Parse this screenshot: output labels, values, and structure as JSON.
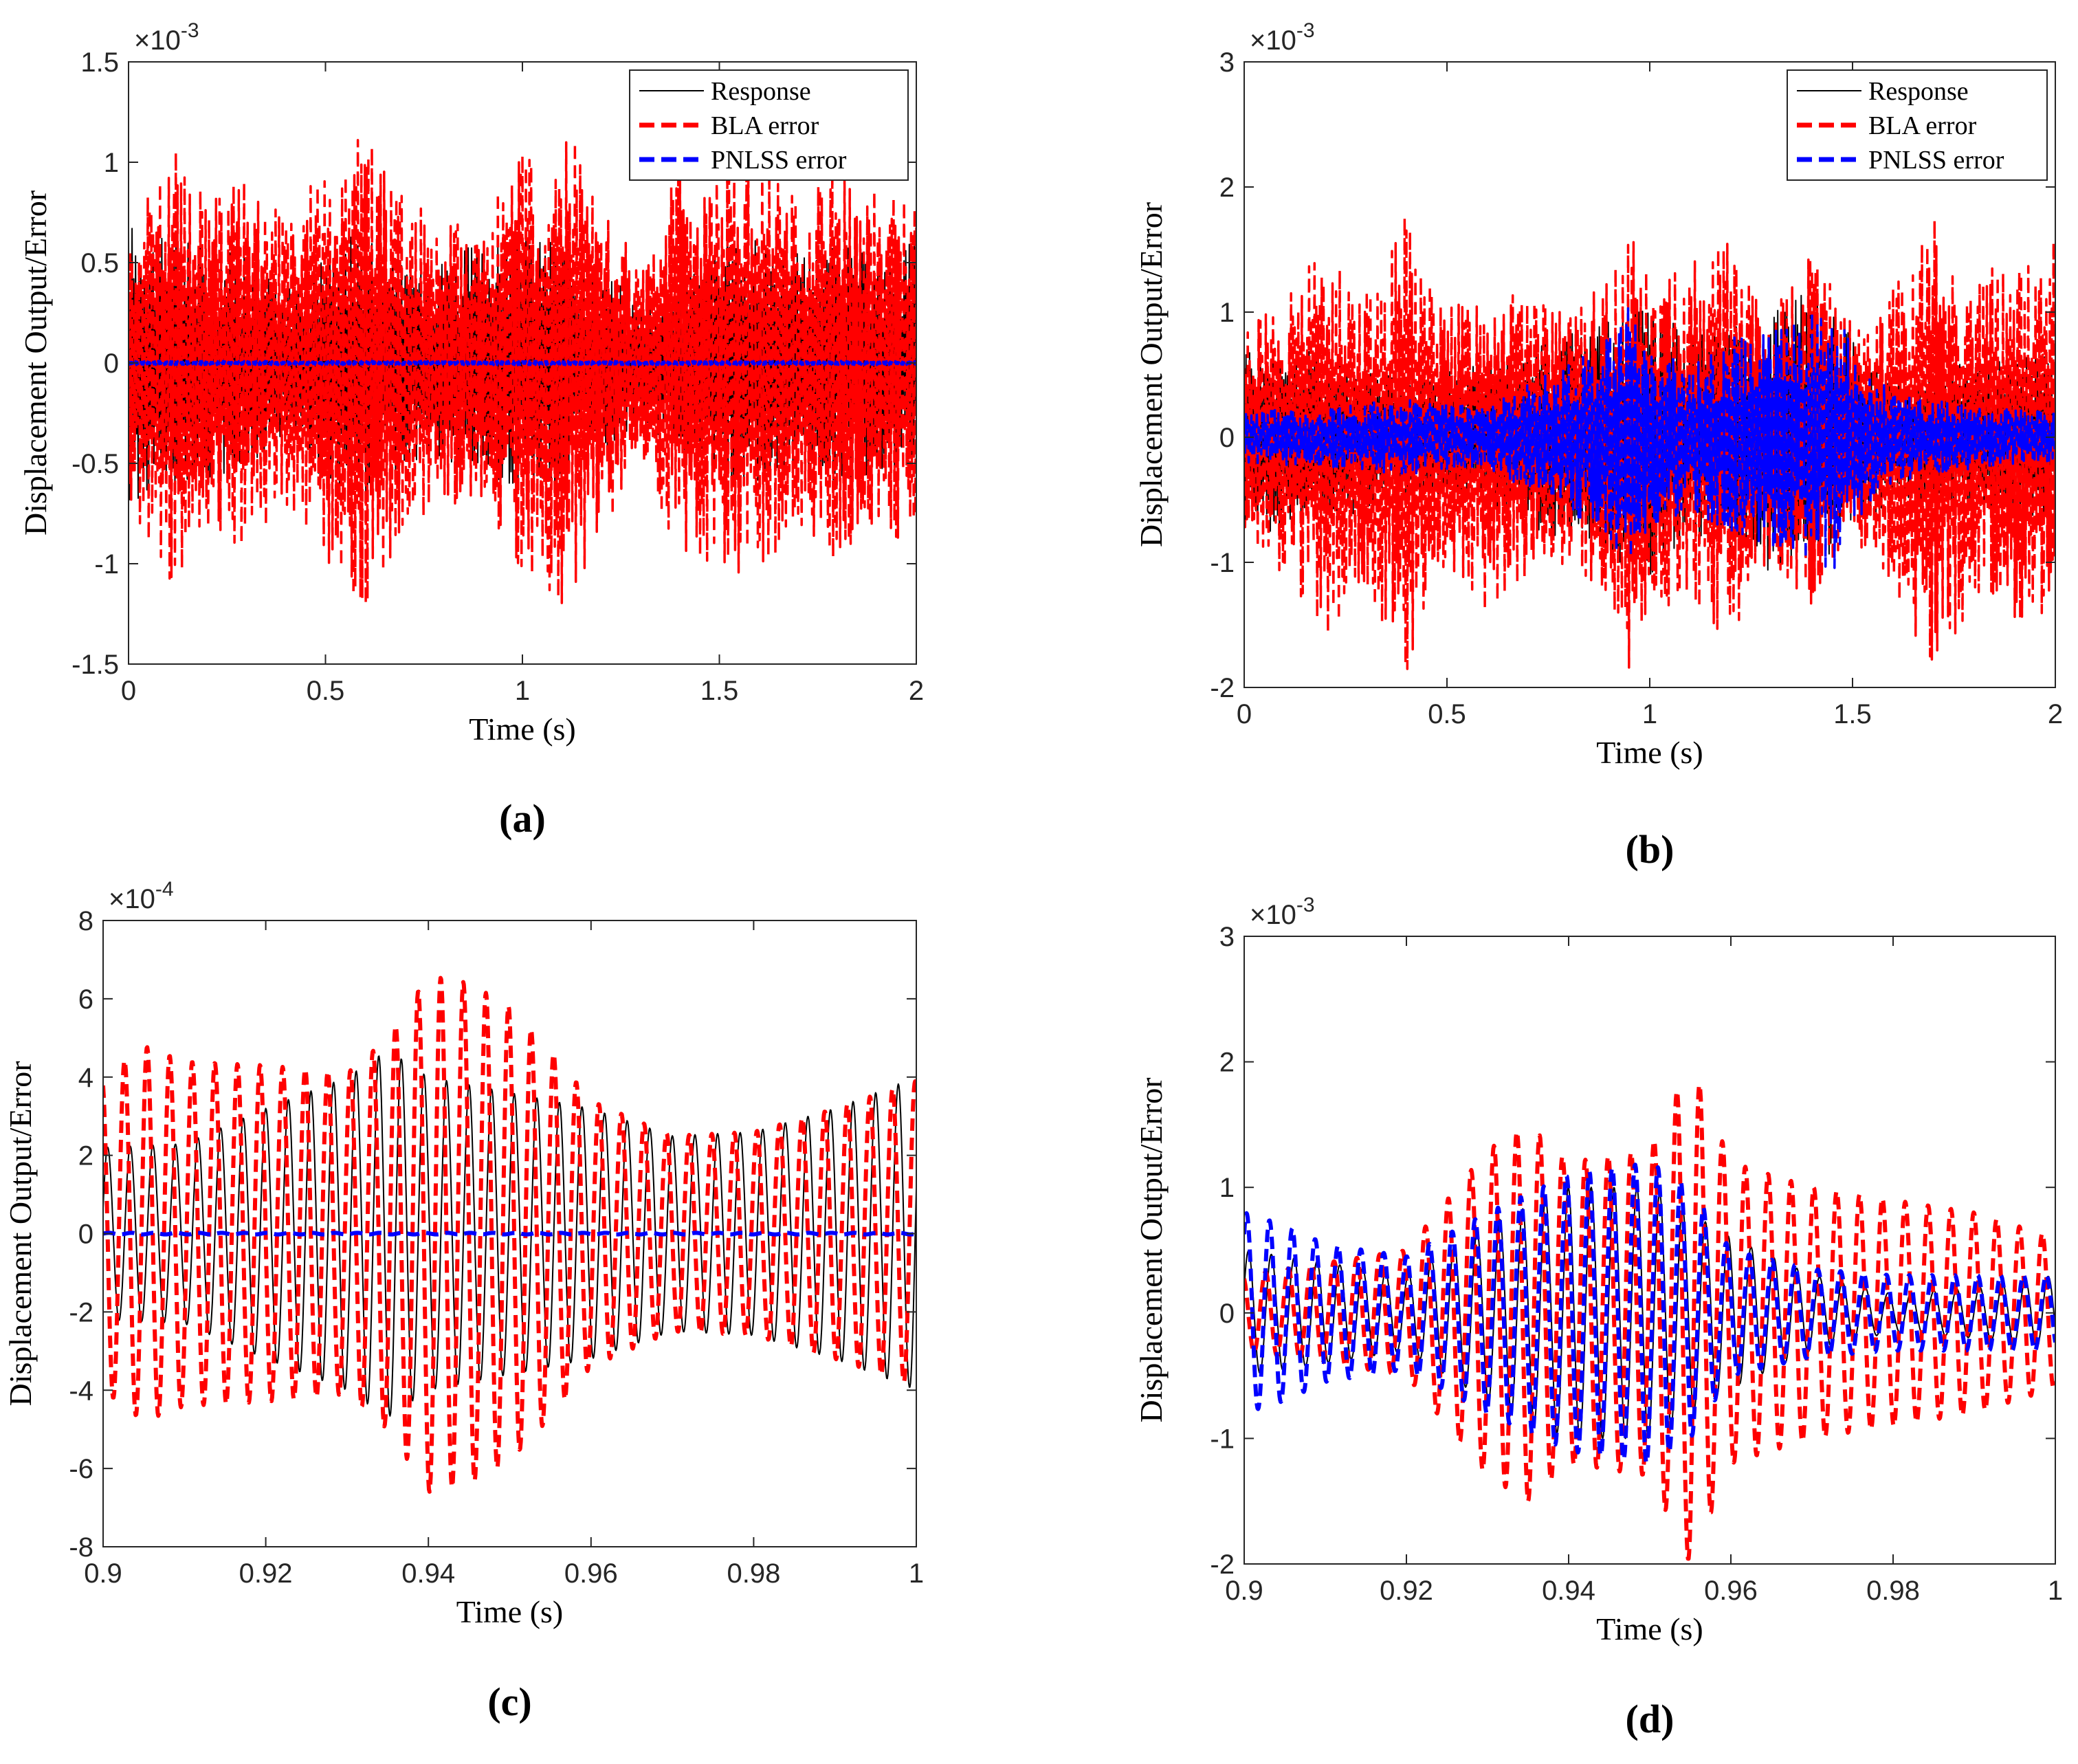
{
  "chart_data": [
    {
      "id": "a",
      "type": "line",
      "panel_label": "(a)",
      "xlabel": "Time (s)",
      "ylabel": "Displacement Output/Error",
      "exponent_label": "×10^-3",
      "xlim": [
        0,
        2
      ],
      "ylim": [
        -1.5,
        1.5
      ],
      "xticks": [
        0,
        0.5,
        1,
        1.5,
        2
      ],
      "xtick_labels": [
        "0",
        "0.5",
        "1",
        "1.5",
        "2"
      ],
      "yticks": [
        -1.5,
        -1,
        -0.5,
        0,
        0.5,
        1,
        1.5
      ],
      "ytick_labels": [
        "-1.5",
        "-1",
        "-0.5",
        "0",
        "0.5",
        "1",
        "1.5"
      ],
      "legend": [
        "Response",
        "BLA error",
        "PNLSS error"
      ],
      "legend_position": "top-right",
      "series": [
        {
          "name": "Response",
          "color": "#000000",
          "style": "solid",
          "envelope_x": [
            0,
            0.1,
            0.2,
            0.3,
            0.4,
            0.5,
            0.6,
            0.7,
            0.8,
            0.9,
            1.0,
            1.1,
            1.2,
            1.3,
            1.4,
            1.5,
            1.6,
            1.7,
            1.8,
            1.9,
            2.0
          ],
          "envelope": [
            0.72,
            0.65,
            0.58,
            0.55,
            0.35,
            0.6,
            0.7,
            0.5,
            0.55,
            0.6,
            0.62,
            0.65,
            0.5,
            0.3,
            0.45,
            0.6,
            0.62,
            0.55,
            0.6,
            0.55,
            0.62
          ]
        },
        {
          "name": "BLA error",
          "color": "#ff0000",
          "style": "dashed",
          "envelope_x": [
            0,
            0.1,
            0.2,
            0.3,
            0.4,
            0.5,
            0.6,
            0.7,
            0.8,
            0.9,
            1.0,
            1.1,
            1.2,
            1.3,
            1.4,
            1.5,
            1.6,
            1.7,
            1.8,
            1.9,
            2.0
          ],
          "envelope": [
            0.7,
            1.12,
            0.85,
            0.95,
            0.7,
            1.0,
            1.22,
            0.85,
            0.7,
            0.75,
            1.05,
            1.2,
            0.9,
            0.45,
            1.0,
            1.0,
            1.12,
            0.8,
            1.0,
            0.9,
            0.85
          ]
        },
        {
          "name": "PNLSS error",
          "color": "#0000ff",
          "style": "dashed",
          "envelope_x": [
            0,
            2
          ],
          "envelope": [
            0.01,
            0.01
          ]
        }
      ]
    },
    {
      "id": "b",
      "type": "line",
      "panel_label": "(b)",
      "xlabel": "Time (s)",
      "ylabel": "Displacement Output/Error",
      "exponent_label": "×10^-3",
      "xlim": [
        0,
        2
      ],
      "ylim": [
        -2,
        3
      ],
      "xticks": [
        0,
        0.5,
        1,
        1.5,
        2
      ],
      "xtick_labels": [
        "0",
        "0.5",
        "1",
        "1.5",
        "2"
      ],
      "yticks": [
        -2,
        -1,
        0,
        1,
        2,
        3
      ],
      "ytick_labels": [
        "-2",
        "-1",
        "0",
        "1",
        "2",
        "3"
      ],
      "legend": [
        "Response",
        "BLA error",
        "PNLSS error"
      ],
      "legend_position": "top-right",
      "series": [
        {
          "name": "Response",
          "color": "#000000",
          "style": "solid",
          "envelope_x": [
            0,
            0.2,
            0.4,
            0.6,
            0.8,
            0.9,
            1.0,
            1.1,
            1.2,
            1.3,
            1.4,
            1.5,
            1.6,
            1.8,
            2.0
          ],
          "envelope": [
            0.8,
            0.7,
            0.5,
            0.6,
            0.9,
            1.0,
            1.1,
            0.8,
            0.9,
            1.1,
            1.2,
            0.8,
            0.5,
            0.6,
            0.7
          ]
        },
        {
          "name": "BLA error",
          "color": "#ff0000",
          "style": "dashed",
          "envelope_x": [
            0,
            0.1,
            0.2,
            0.3,
            0.4,
            0.5,
            0.6,
            0.7,
            0.8,
            0.9,
            0.95,
            1.0,
            1.1,
            1.2,
            1.3,
            1.4,
            1.5,
            1.6,
            1.7,
            1.8,
            1.9,
            2.0
          ],
          "envelope": [
            0.9,
            1.1,
            1.6,
            1.2,
            1.9,
            1.0,
            1.4,
            1.1,
            1.0,
            1.3,
            2.0,
            1.3,
            1.4,
            1.6,
            1.0,
            1.5,
            0.9,
            1.2,
            1.9,
            1.3,
            1.5,
            1.6
          ]
        },
        {
          "name": "PNLSS error",
          "color": "#0000ff",
          "style": "dashed",
          "envelope_x": [
            0,
            0.2,
            0.4,
            0.6,
            0.8,
            0.9,
            0.95,
            1.0,
            1.1,
            1.2,
            1.3,
            1.4,
            1.45,
            1.5,
            1.6,
            1.8,
            2.0
          ],
          "envelope": [
            0.2,
            0.25,
            0.3,
            0.25,
            0.6,
            0.8,
            1.1,
            0.7,
            0.6,
            0.8,
            0.9,
            1.0,
            1.1,
            0.7,
            0.35,
            0.25,
            0.2
          ]
        }
      ]
    },
    {
      "id": "c",
      "type": "line",
      "panel_label": "(c)",
      "xlabel": "Time (s)",
      "ylabel": "Displacement Output/Error",
      "exponent_label": "×10^-4",
      "xlim": [
        0.9,
        1
      ],
      "ylim": [
        -8,
        8
      ],
      "xticks": [
        0.9,
        0.92,
        0.94,
        0.96,
        0.98,
        1
      ],
      "xtick_labels": [
        "0.9",
        "0.92",
        "0.94",
        "0.96",
        "0.98",
        "1"
      ],
      "yticks": [
        -8,
        -6,
        -4,
        -2,
        0,
        2,
        4,
        6,
        8
      ],
      "ytick_labels": [
        "-8",
        "-6",
        "-4",
        "-2",
        "0",
        "2",
        "4",
        "6",
        "8"
      ],
      "series": [
        {
          "name": "Response",
          "color": "#000000",
          "style": "solid",
          "frequency_hz": 360,
          "phase": 0.3,
          "envelope_x": [
            0.9,
            0.91,
            0.92,
            0.93,
            0.935,
            0.94,
            0.95,
            0.96,
            0.97,
            0.98,
            0.99,
            1.0
          ],
          "envelope": [
            2.2,
            2.3,
            3.2,
            4.0,
            4.7,
            4.0,
            3.6,
            3.2,
            2.5,
            2.6,
            3.2,
            4.0
          ]
        },
        {
          "name": "BLA error",
          "color": "#ff0000",
          "style": "dashed",
          "frequency_hz": 360,
          "phase": 1.9,
          "envelope_x": [
            0.9,
            0.905,
            0.91,
            0.92,
            0.93,
            0.935,
            0.94,
            0.945,
            0.95,
            0.955,
            0.96,
            0.97,
            0.98,
            0.99,
            1.0
          ],
          "envelope": [
            4.0,
            4.8,
            4.4,
            4.3,
            4.1,
            5.0,
            6.6,
            6.4,
            5.8,
            4.7,
            3.4,
            2.5,
            2.6,
            3.2,
            3.9
          ]
        },
        {
          "name": "PNLSS error",
          "color": "#0000ff",
          "style": "dashed",
          "frequency_hz": 360,
          "phase": 0.0,
          "envelope_x": [
            0.9,
            1.0
          ],
          "envelope": [
            0.02,
            0.02
          ]
        }
      ]
    },
    {
      "id": "d",
      "type": "line",
      "panel_label": "(d)",
      "xlabel": "Time (s)",
      "ylabel": "Displacement Output/Error",
      "exponent_label": "×10^-3",
      "xlim": [
        0.9,
        1
      ],
      "ylim": [
        -2,
        3
      ],
      "xticks": [
        0.9,
        0.92,
        0.94,
        0.96,
        0.98,
        1
      ],
      "xtick_labels": [
        "0.9",
        "0.92",
        "0.94",
        "0.96",
        "0.98",
        "1"
      ],
      "yticks": [
        -2,
        -1,
        0,
        1,
        2,
        3
      ],
      "ytick_labels": [
        "-2",
        "-1",
        "0",
        "1",
        "2",
        "3"
      ],
      "series": [
        {
          "name": "Response",
          "color": "#000000",
          "style": "solid",
          "frequency_hz": 355,
          "phase": 0.4,
          "envelope_x": [
            0.9,
            0.91,
            0.92,
            0.93,
            0.94,
            0.95,
            0.96,
            0.97,
            0.98,
            0.99,
            1.0
          ],
          "envelope": [
            0.5,
            0.4,
            0.3,
            0.7,
            1.0,
            1.0,
            0.6,
            0.3,
            0.15,
            0.2,
            0.3
          ]
        },
        {
          "name": "BLA error",
          "color": "#ff0000",
          "style": "dashed",
          "frequency_hz": 355,
          "phase": 2.0,
          "envelope_x": [
            0.9,
            0.91,
            0.92,
            0.93,
            0.935,
            0.94,
            0.95,
            0.955,
            0.96,
            0.97,
            0.98,
            0.99,
            1.0
          ],
          "envelope": [
            0.3,
            0.4,
            0.5,
            1.3,
            1.5,
            1.2,
            1.3,
            2.0,
            1.2,
            1.0,
            0.9,
            0.8,
            0.6
          ]
        },
        {
          "name": "PNLSS error",
          "color": "#0000ff",
          "style": "dashed",
          "frequency_hz": 355,
          "phase": 0.9,
          "envelope_x": [
            0.9,
            0.905,
            0.91,
            0.92,
            0.93,
            0.94,
            0.95,
            0.955,
            0.96,
            0.97,
            0.98,
            0.99,
            1.0
          ],
          "envelope": [
            0.8,
            0.7,
            0.55,
            0.45,
            0.8,
            1.1,
            1.2,
            1.0,
            0.5,
            0.35,
            0.3,
            0.3,
            0.3
          ]
        }
      ]
    }
  ]
}
